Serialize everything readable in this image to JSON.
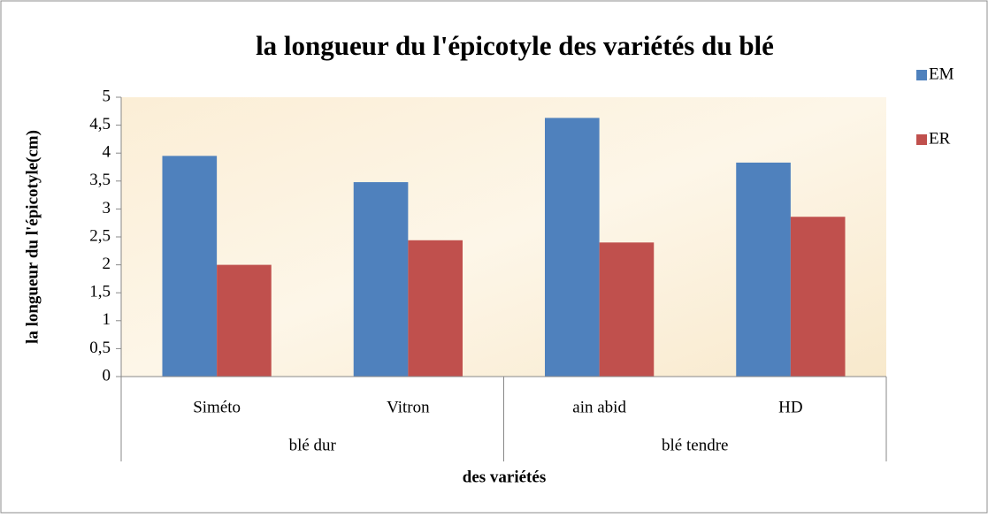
{
  "chart_data": {
    "type": "bar",
    "title": "la longueur du l'épicotyle des variétés du blé",
    "x_label": "des variétés",
    "y_label": "la longueur du l'épicotyle(cm)",
    "categories": [
      "Siméto",
      "Vitron",
      "ain abid",
      "HD"
    ],
    "groups": [
      {
        "name": "blé dur",
        "span": 2
      },
      {
        "name": "blé tendre",
        "span": 2
      }
    ],
    "series": [
      {
        "name": "EM",
        "color": "#4f81bd",
        "values": [
          3.95,
          3.48,
          4.63,
          3.83
        ]
      },
      {
        "name": "ER",
        "color": "#c0504d",
        "values": [
          2.0,
          2.44,
          2.4,
          2.86
        ]
      }
    ],
    "ylim": [
      0,
      5
    ],
    "yticks": [
      0,
      {
        "value": 0.5,
        "label": "0,5"
      },
      1,
      {
        "value": 1.5,
        "label": "1,5"
      },
      2,
      {
        "value": 2.5,
        "label": "2,5"
      },
      3,
      {
        "value": 3.5,
        "label": "3,5"
      },
      4,
      {
        "value": 4.5,
        "label": "4,5"
      },
      5
    ],
    "legend": "right"
  }
}
